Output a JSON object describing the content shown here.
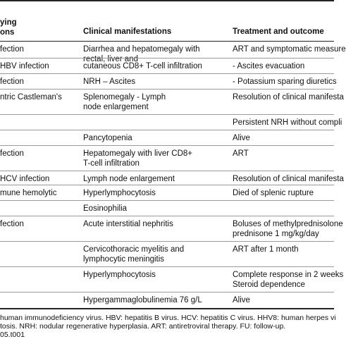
{
  "table": {
    "header": [
      [
        "ying",
        "ons"
      ],
      "Clinical manifestations",
      "Treatment and outcome"
    ],
    "rows": [
      [
        "fection",
        [
          "Diarrhea and hepatomegaly with",
          "rectal, liver and"
        ],
        "ART and symptomatic measure"
      ],
      [
        "HBV infection",
        "cutaneous CD8+ T-cell infiltration",
        "- Ascites evacuation"
      ],
      [
        "fection",
        "NRH – Ascites",
        "- Potassium sparing diuretics"
      ],
      [
        "ntric Castleman's",
        [
          "Splenomegaly - Lymph",
          "node enlargement"
        ],
        "Resolution of clinical manifesta"
      ],
      [
        null,
        null,
        "Persistent NRH without compli"
      ],
      [
        null,
        "Pancytopenia",
        "Alive"
      ],
      [
        "fection",
        [
          "Hepatomegaly with liver CD8+",
          "T-cell infiltration"
        ],
        "ART"
      ],
      [
        "HCV infection",
        "Lymph node enlargement",
        "Resolution of clinical manifesta"
      ],
      [
        "mune hemolytic",
        "Hyperlymphocytosis",
        "Died of splenic rupture"
      ],
      [
        null,
        "Eosinophilia",
        null
      ],
      [
        "fection",
        "Acute interstitial nephritis",
        [
          "Boluses of methylprednisolone",
          "prednisone 1 mg/kg/day"
        ]
      ],
      [
        null,
        [
          "Cervicothoracic myelitis and",
          "lymphocytic meningitis"
        ],
        "ART after 1 month"
      ],
      [
        null,
        "Hyperlymphocytosis",
        [
          "Complete response in 2 weeks",
          "Steroid dependence"
        ]
      ],
      [
        null,
        "Hypergammaglobulinemia 76 g/L",
        "Alive"
      ]
    ]
  },
  "footnote": [
    "human immunodeficiency virus. HBV: hepatitis B virus. HCV: hepatitis C virus. HHV8: human herpes vi",
    "tosis. NRH: nodular regenerative hyperplasia. ART: antiretroviral therapy. FU: follow-up.",
    "05.t001"
  ]
}
